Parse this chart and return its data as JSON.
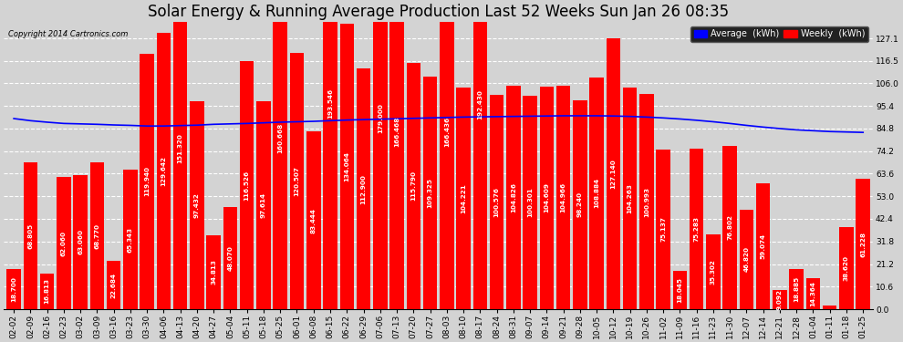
{
  "title": "Solar Energy & Running Average Production Last 52 Weeks Sun Jan 26 08:35",
  "copyright": "Copyright 2014 Cartronics.com",
  "background_color": "#d3d3d3",
  "plot_bg_color": "#d3d3d3",
  "bar_color": "red",
  "avg_line_color": "blue",
  "legend_avg_label": "Average  (kWh)",
  "legend_weekly_label": "Weekly  (kWh)",
  "legend_avg_color": "blue",
  "legend_weekly_color": "red",
  "categories": [
    "02-02",
    "02-09",
    "02-16",
    "02-23",
    "03-02",
    "03-09",
    "03-16",
    "03-23",
    "03-30",
    "04-06",
    "04-13",
    "04-20",
    "04-27",
    "05-04",
    "05-11",
    "05-18",
    "05-25",
    "06-01",
    "06-08",
    "06-15",
    "06-22",
    "06-29",
    "07-06",
    "07-13",
    "07-20",
    "07-27",
    "08-03",
    "08-10",
    "08-17",
    "08-24",
    "08-31",
    "09-07",
    "09-14",
    "09-21",
    "09-28",
    "10-05",
    "10-12",
    "10-19",
    "10-26",
    "11-02",
    "11-09",
    "11-16",
    "11-23",
    "11-30",
    "12-07",
    "12-14",
    "12-21",
    "12-28",
    "01-04",
    "01-11",
    "01-18",
    "01-25"
  ],
  "weekly_values": [
    18.7,
    68.805,
    16.813,
    62.06,
    63.06,
    68.77,
    22.684,
    65.343,
    119.94,
    129.642,
    151.32,
    97.432,
    34.813,
    48.07,
    116.526,
    97.614,
    160.668,
    120.507,
    83.444,
    193.546,
    134.064,
    112.9,
    179.0,
    166.468,
    115.79,
    109.325,
    166.436,
    104.221,
    192.43,
    100.576,
    104.826,
    100.301,
    104.609,
    104.966,
    98.24,
    108.884,
    127.14,
    104.263,
    100.993,
    75.137,
    18.045,
    75.283,
    35.302,
    76.802,
    46.82,
    59.074,
    9.092,
    18.885,
    14.364,
    1.752,
    38.62,
    61.228
  ],
  "avg_values": [
    89.5,
    88.5,
    87.8,
    87.2,
    87.0,
    86.8,
    86.5,
    86.3,
    86.0,
    86.0,
    86.2,
    86.4,
    86.8,
    87.0,
    87.2,
    87.5,
    87.8,
    88.0,
    88.2,
    88.5,
    88.8,
    89.0,
    89.2,
    89.4,
    89.6,
    89.8,
    90.0,
    90.2,
    90.3,
    90.4,
    90.5,
    90.6,
    90.7,
    90.8,
    90.8,
    90.8,
    90.7,
    90.5,
    90.2,
    89.8,
    89.3,
    88.7,
    88.0,
    87.2,
    86.3,
    85.5,
    84.8,
    84.2,
    83.8,
    83.4,
    83.2,
    83.0
  ],
  "yticks": [
    0.0,
    10.6,
    21.2,
    31.8,
    42.4,
    53.0,
    63.6,
    74.2,
    84.8,
    95.4,
    106.0,
    116.5,
    127.1
  ],
  "ylim": [
    0,
    135
  ],
  "title_fontsize": 12,
  "tick_fontsize": 6.5,
  "value_fontsize": 5.2
}
